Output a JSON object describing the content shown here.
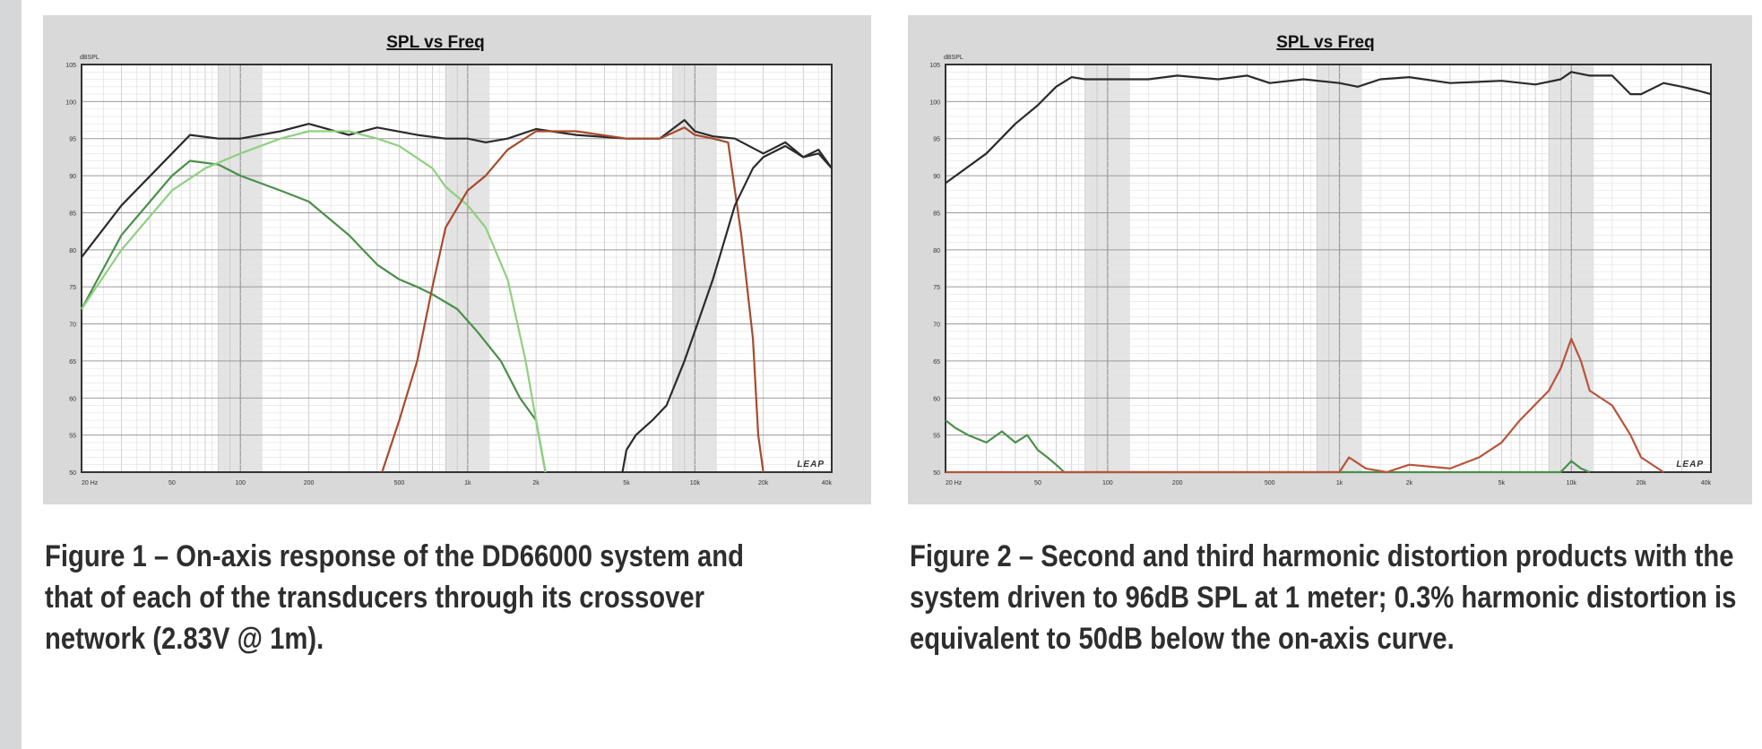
{
  "chart_data": [
    {
      "type": "line",
      "title": "SPL vs Freq",
      "ylabel": "dBSPL",
      "xscale": "log",
      "xlim": [
        20,
        40000
      ],
      "ylim": [
        50,
        105
      ],
      "x_tick_labels": [
        "20 Hz",
        "50",
        "100",
        "200",
        "500",
        "1k",
        "2k",
        "5k",
        "10k",
        "20k",
        "40k"
      ],
      "x_tick_values": [
        20,
        50,
        100,
        200,
        500,
        1000,
        2000,
        5000,
        10000,
        20000,
        40000
      ],
      "y_tick_labels": [
        "105",
        "100",
        "95",
        "90",
        "85",
        "80",
        "75",
        "70",
        "65",
        "60",
        "55",
        "50"
      ],
      "brand": "LEAP",
      "grid": true,
      "series": [
        {
          "color": "#2b2b2b",
          "points": [
            [
              20,
              79
            ],
            [
              30,
              86
            ],
            [
              50,
              93
            ],
            [
              60,
              95.5
            ],
            [
              80,
              95
            ],
            [
              100,
              95
            ],
            [
              150,
              96
            ],
            [
              200,
              97
            ],
            [
              300,
              95.5
            ],
            [
              400,
              96.5
            ],
            [
              600,
              95.5
            ],
            [
              800,
              95
            ],
            [
              1000,
              95
            ],
            [
              1200,
              94.5
            ],
            [
              1500,
              95
            ],
            [
              2000,
              96.3
            ],
            [
              3000,
              95.5
            ],
            [
              5000,
              95
            ],
            [
              7000,
              95
            ],
            [
              9000,
              97.5
            ],
            [
              10000,
              96
            ],
            [
              12000,
              95.3
            ],
            [
              15000,
              95
            ],
            [
              20000,
              93
            ],
            [
              25000,
              94.5
            ],
            [
              30000,
              92.5
            ],
            [
              35000,
              93.5
            ],
            [
              40000,
              91
            ]
          ]
        },
        {
          "color": "#4b8f4b",
          "points": [
            [
              20,
              72
            ],
            [
              30,
              82
            ],
            [
              50,
              90
            ],
            [
              60,
              92
            ],
            [
              80,
              91.5
            ],
            [
              100,
              90
            ],
            [
              150,
              88
            ],
            [
              200,
              86.5
            ],
            [
              300,
              82
            ],
            [
              400,
              78
            ],
            [
              500,
              76
            ],
            [
              600,
              75
            ],
            [
              700,
              74
            ],
            [
              900,
              72
            ],
            [
              1100,
              69
            ],
            [
              1400,
              65
            ],
            [
              1700,
              60
            ],
            [
              2000,
              57
            ],
            [
              2200,
              50
            ]
          ]
        },
        {
          "color": "#8fd080",
          "points": [
            [
              20,
              72
            ],
            [
              30,
              80
            ],
            [
              50,
              88
            ],
            [
              70,
              91
            ],
            [
              100,
              93
            ],
            [
              150,
              95
            ],
            [
              200,
              96
            ],
            [
              300,
              96
            ],
            [
              400,
              95
            ],
            [
              500,
              94
            ],
            [
              700,
              91
            ],
            [
              800,
              88.5
            ],
            [
              1000,
              86
            ],
            [
              1200,
              83
            ],
            [
              1500,
              76
            ],
            [
              1800,
              65
            ],
            [
              2000,
              57
            ],
            [
              2200,
              50
            ]
          ]
        },
        {
          "color": "#a84a2c",
          "points": [
            [
              420,
              50
            ],
            [
              500,
              57
            ],
            [
              600,
              65
            ],
            [
              700,
              75
            ],
            [
              800,
              83
            ],
            [
              1000,
              88
            ],
            [
              1200,
              90
            ],
            [
              1500,
              93.5
            ],
            [
              2000,
              96
            ],
            [
              3000,
              96
            ],
            [
              5000,
              95
            ],
            [
              7000,
              95
            ],
            [
              9000,
              96.5
            ],
            [
              10000,
              95.5
            ],
            [
              12000,
              95
            ],
            [
              14000,
              94.5
            ],
            [
              16000,
              82
            ],
            [
              18000,
              68
            ],
            [
              19000,
              55
            ],
            [
              20000,
              50
            ]
          ]
        },
        {
          "color": "#2b2b2b",
          "points": [
            [
              4800,
              50
            ],
            [
              5000,
              53
            ],
            [
              5500,
              55
            ],
            [
              6500,
              57
            ],
            [
              7500,
              59
            ],
            [
              9000,
              65
            ],
            [
              10000,
              69
            ],
            [
              12000,
              76
            ],
            [
              15000,
              86
            ],
            [
              18000,
              91
            ],
            [
              20000,
              92.5
            ],
            [
              25000,
              94
            ],
            [
              30000,
              92.5
            ],
            [
              35000,
              93
            ],
            [
              40000,
              91
            ]
          ]
        }
      ]
    },
    {
      "type": "line",
      "title": "SPL vs Freq",
      "ylabel": "dBSPL",
      "xscale": "log",
      "xlim": [
        20,
        40000
      ],
      "ylim": [
        50,
        105
      ],
      "x_tick_labels": [
        "20 Hz",
        "50",
        "100",
        "200",
        "500",
        "1k",
        "2k",
        "5k",
        "10k",
        "20k",
        "40k"
      ],
      "x_tick_values": [
        20,
        50,
        100,
        200,
        500,
        1000,
        2000,
        5000,
        10000,
        20000,
        40000
      ],
      "y_tick_labels": [
        "105",
        "100",
        "95",
        "90",
        "85",
        "80",
        "75",
        "70",
        "65",
        "60",
        "55",
        "50"
      ],
      "brand": "LEAP",
      "grid": true,
      "series": [
        {
          "color": "#2b2b2b",
          "points": [
            [
              20,
              89
            ],
            [
              30,
              93
            ],
            [
              40,
              97
            ],
            [
              50,
              99.5
            ],
            [
              60,
              102
            ],
            [
              70,
              103.3
            ],
            [
              80,
              103
            ],
            [
              100,
              103
            ],
            [
              150,
              103
            ],
            [
              200,
              103.5
            ],
            [
              300,
              103
            ],
            [
              400,
              103.5
            ],
            [
              500,
              102.5
            ],
            [
              700,
              103
            ],
            [
              1000,
              102.5
            ],
            [
              1200,
              102
            ],
            [
              1500,
              103
            ],
            [
              2000,
              103.3
            ],
            [
              3000,
              102.5
            ],
            [
              5000,
              102.8
            ],
            [
              7000,
              102.3
            ],
            [
              9000,
              103
            ],
            [
              10000,
              104
            ],
            [
              12000,
              103.5
            ],
            [
              15000,
              103.5
            ],
            [
              18000,
              101
            ],
            [
              20000,
              101
            ],
            [
              25000,
              102.5
            ],
            [
              30000,
              102
            ],
            [
              35000,
              101.5
            ],
            [
              40000,
              101
            ]
          ]
        },
        {
          "color": "#4b8f4b",
          "points": [
            [
              20,
              57
            ],
            [
              22,
              56
            ],
            [
              25,
              55
            ],
            [
              30,
              54
            ],
            [
              35,
              55.5
            ],
            [
              40,
              54
            ],
            [
              45,
              55
            ],
            [
              50,
              53
            ],
            [
              55,
              52
            ],
            [
              60,
              51
            ],
            [
              65,
              50
            ],
            [
              9000,
              50
            ],
            [
              10000,
              51.5
            ],
            [
              11000,
              50.5
            ],
            [
              12000,
              50
            ]
          ]
        },
        {
          "color": "#b8543a",
          "points": [
            [
              20,
              50
            ],
            [
              100,
              50
            ],
            [
              500,
              50
            ],
            [
              1000,
              50
            ],
            [
              1100,
              52
            ],
            [
              1300,
              50.5
            ],
            [
              1600,
              50
            ],
            [
              2000,
              51
            ],
            [
              3000,
              50.5
            ],
            [
              4000,
              52
            ],
            [
              5000,
              54
            ],
            [
              6000,
              57
            ],
            [
              8000,
              61
            ],
            [
              9000,
              64
            ],
            [
              10000,
              68
            ],
            [
              11000,
              65
            ],
            [
              12000,
              61
            ],
            [
              15000,
              59
            ],
            [
              18000,
              55
            ],
            [
              20000,
              52
            ],
            [
              25000,
              50
            ]
          ]
        }
      ]
    }
  ],
  "captions": [
    "Figure 1 – On-axis response of the DD66000 system and that of each of the transducers through its crossover network (2.83V @ 1m).",
    "Figure 2 – Second and third harmonic distortion products with the system driven to 96dB SPL at 1 meter; 0.3% harmonic distortion is equivalent to 50dB below the on-axis curve."
  ]
}
